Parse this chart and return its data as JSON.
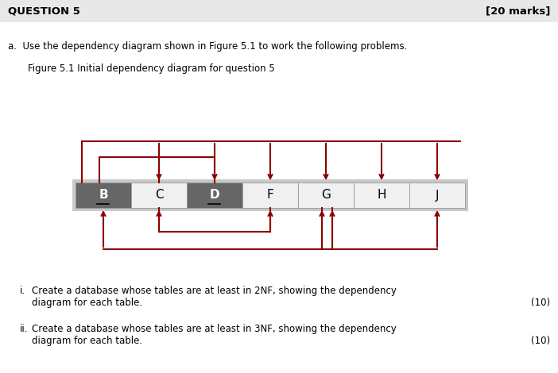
{
  "title": "QUESTION 5",
  "marks": "[20 marks]",
  "text_a": "a.  Use the dependency diagram shown in Figure 5.1 to work the following problems.",
  "fig_caption": "Figure 5.1 Initial dependency diagram for question 5",
  "columns": [
    "B",
    "C",
    "D",
    "F",
    "G",
    "H",
    "J"
  ],
  "col_dark_indices": [
    0,
    2
  ],
  "col_dark_color": "#666666",
  "col_white_color": "#f0f0f0",
  "arrow_color": "#8B0000",
  "bg_color": "#ffffff",
  "header_bg": "#e8e8e8"
}
